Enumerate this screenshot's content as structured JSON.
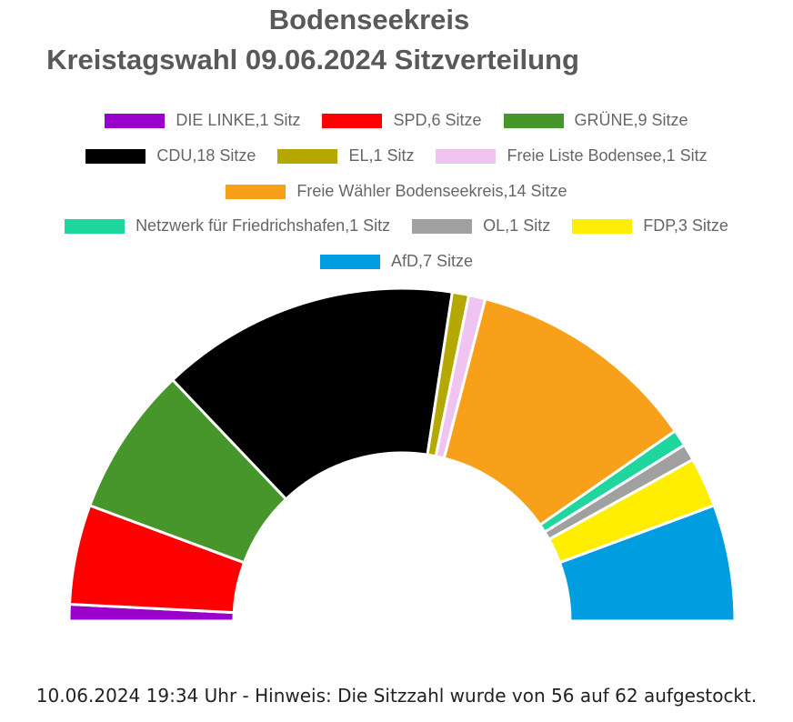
{
  "chart_data": {
    "type": "pie",
    "subtype": "parliament-half-donut",
    "title_line1": "Bodenseekreis",
    "title_line2": "Kreistagswahl 09.06.2024 Sitzverteilung",
    "total_seats": 62,
    "series": [
      {
        "name": "DIE LINKE",
        "label": "DIE LINKE,1 Sitz",
        "value": 1,
        "color": "#9900cc"
      },
      {
        "name": "SPD",
        "label": "SPD,6 Sitze",
        "value": 6,
        "color": "#ff0000"
      },
      {
        "name": "GRÜNE",
        "label": "GRÜNE,9 Sitze",
        "value": 9,
        "color": "#46962b"
      },
      {
        "name": "CDU",
        "label": "CDU,18 Sitze",
        "value": 18,
        "color": "#000000"
      },
      {
        "name": "EL",
        "label": "EL,1 Sitz",
        "value": 1,
        "color": "#b5a800"
      },
      {
        "name": "Freie Liste Bodensee",
        "label": "Freie Liste Bodensee,1 Sitz",
        "value": 1,
        "color": "#f0c4f0"
      },
      {
        "name": "Freie Wähler Bodenseekreis",
        "label": "Freie Wähler Bodenseekreis,14 Sitze",
        "value": 14,
        "color": "#f8a01a"
      },
      {
        "name": "Netzwerk für Friedrichshafen",
        "label": "Netzwerk für Friedrichshafen,1 Sitz",
        "value": 1,
        "color": "#1fd69e"
      },
      {
        "name": "OL",
        "label": "OL,1 Sitz",
        "value": 1,
        "color": "#a0a0a0"
      },
      {
        "name": "FDP",
        "label": "FDP,3 Sitze",
        "value": 3,
        "color": "#ffee00"
      },
      {
        "name": "AfD",
        "label": "AfD,7 Sitze",
        "value": 7,
        "color": "#009ee0"
      }
    ],
    "legend_rows": [
      [
        0,
        1,
        2
      ],
      [
        3,
        4,
        5
      ],
      [
        6
      ],
      [
        7,
        8,
        9
      ],
      [
        10
      ]
    ],
    "legend_position": "top"
  },
  "footer": "10.06.2024 19:34 Uhr - Hinweis: Die Sitzzahl wurde von 56 auf 62 aufgestockt."
}
